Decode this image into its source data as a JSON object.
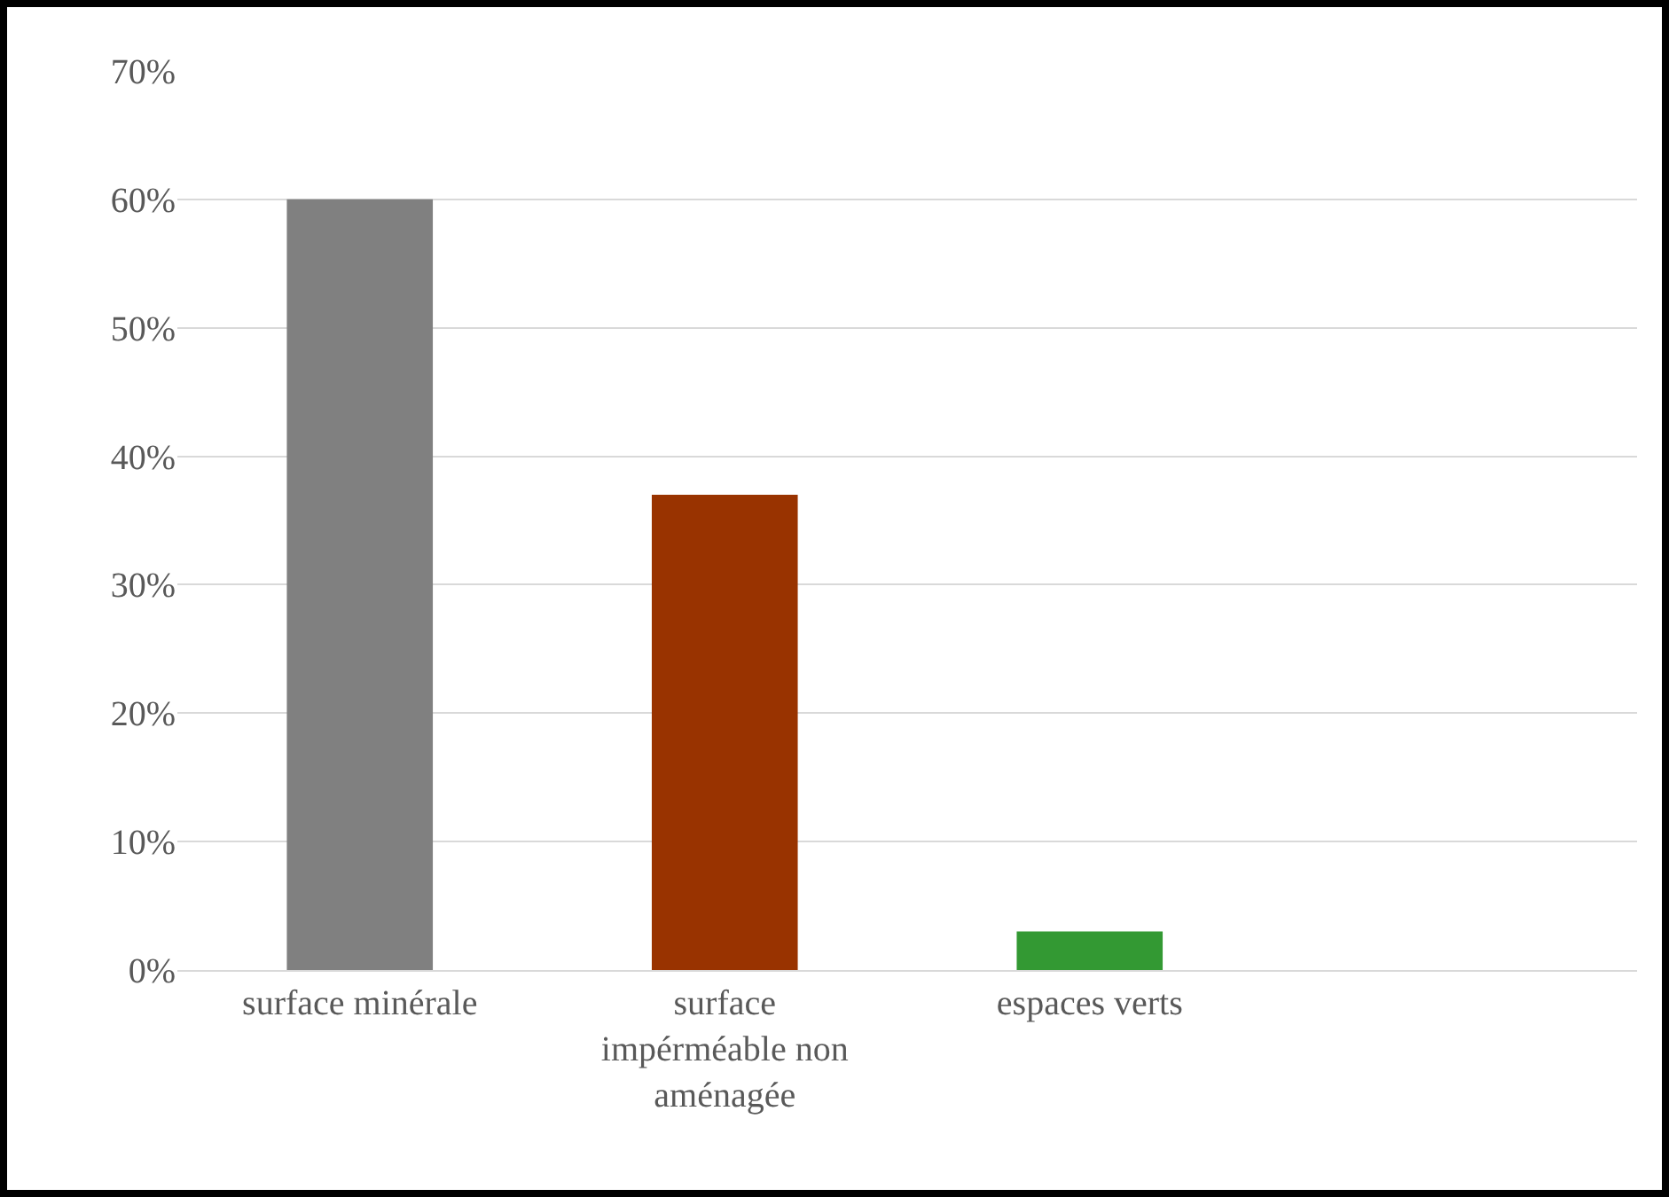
{
  "chart_data": {
    "type": "bar",
    "categories": [
      "surface minérale",
      "surface impérméable non aménagée",
      "espaces verts",
      null
    ],
    "values": [
      60,
      37,
      3,
      null
    ],
    "colors": [
      "#808080",
      "#993300",
      "#339933",
      "#339933"
    ],
    "ylim": [
      0,
      70
    ],
    "yticks": [
      {
        "value": 0,
        "label": "0%"
      },
      {
        "value": 10,
        "label": "10%"
      },
      {
        "value": 20,
        "label": "20%"
      },
      {
        "value": 30,
        "label": "30%"
      },
      {
        "value": 40,
        "label": "40%"
      },
      {
        "value": 50,
        "label": "50%"
      },
      {
        "value": 60,
        "label": "60%"
      },
      {
        "value": 70,
        "label": "70%"
      }
    ],
    "grid": "y"
  }
}
